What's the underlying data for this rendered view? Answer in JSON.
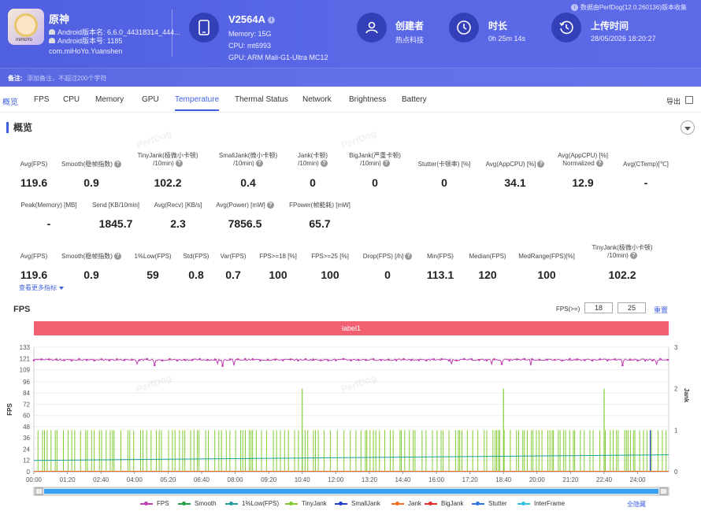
{
  "app": {
    "name": "原神",
    "android_version": "Android版本名: 6.6.0_44318314_444...",
    "android_code": "Android版本号: 1185",
    "package": "com.miHoYo.Yuanshen",
    "icon_tag": "miHoYo"
  },
  "device": {
    "name": "V2564A",
    "memory": "Memory: 15G",
    "cpu": "CPU: mt6993",
    "gpu": "GPU: ARM Mali-G1-Ultra MC12"
  },
  "meta": {
    "creator_label": "创建者",
    "creator_value": "热点科技",
    "duration_label": "时长",
    "duration_value": "0h 25m 14s",
    "upload_label": "上传时间",
    "upload_value": "28/05/2026 18:20:27"
  },
  "collect_note": "数据由PerfDog(12.0.260136)版本收集",
  "remark": {
    "label": "备注:",
    "placeholder": "添加备注，不超过200个字符"
  },
  "tabs": [
    "概览",
    "FPS",
    "CPU",
    "Memory",
    "GPU",
    "Temperature",
    "Thermal Status",
    "Network",
    "Brightness",
    "Battery"
  ],
  "export_label": "导出",
  "overview_title": "概览",
  "row1": [
    {
      "label": "Avg(FPS)",
      "value": "119.6"
    },
    {
      "label": "Smooth(稳帧指数)",
      "value": "0.9"
    },
    {
      "label": "TinyJank(极微小卡顿)",
      "label2": "/10min)",
      "value": "102.2"
    },
    {
      "label": "SmallJank(微小卡顿)",
      "label2": "/10min)",
      "value": "0.4"
    },
    {
      "label": "Jank(卡顿)",
      "label2": "/10min)",
      "value": "0"
    },
    {
      "label": "BigJank(严重卡顿)",
      "label2": "/10min)",
      "value": "0"
    },
    {
      "label": "Stutter(卡顿率) [%]",
      "value": "0"
    },
    {
      "label": "Avg(AppCPU) [%]",
      "value": "34.1"
    },
    {
      "label": "Avg(AppCPU) [%]",
      "label2": "Normalized",
      "value": "12.9"
    },
    {
      "label": "Avg(CTemp)[℃]",
      "value": "-"
    }
  ],
  "row2": [
    {
      "label": "Peak(Memory) [MB]",
      "value": "-"
    },
    {
      "label": "Send [KB/10min]",
      "value": "1845.7"
    },
    {
      "label": "Avg(Recv) [KB/s]",
      "value": "2.3"
    },
    {
      "label": "Avg(Power) [mW]",
      "value": "7856.5"
    },
    {
      "label": "FPower(帧能耗) [mW]",
      "value": "65.7"
    }
  ],
  "row3": [
    {
      "label": "Avg(FPS)",
      "value": "119.6"
    },
    {
      "label": "Smooth(稳帧指数)",
      "value": "0.9"
    },
    {
      "label": "1%Low(FPS)",
      "value": "59"
    },
    {
      "label": "Std(FPS)",
      "value": "0.8"
    },
    {
      "label": "Var(FPS)",
      "value": "0.7"
    },
    {
      "label": "FPS>=18 [%]",
      "value": "100"
    },
    {
      "label": "FPS>=25 [%]",
      "value": "100"
    },
    {
      "label": "Drop(FPS) [/h]",
      "value": "0"
    },
    {
      "label": "Min(FPS)",
      "value": "113.1"
    },
    {
      "label": "Median(FPS)",
      "value": "120"
    },
    {
      "label": "MedRange(FPS)[%]",
      "value": "100"
    },
    {
      "label": "TinyJank(极微小卡顿)",
      "label2": "/10min)",
      "value": "102.2"
    }
  ],
  "more_label": "查看更多指标",
  "fps_section": {
    "title": "FPS",
    "threshold_label": "FPS(>=)",
    "threshold_1": "18",
    "threshold_2": "25",
    "reset_label": "重置",
    "label_bar": "label1",
    "hide_all": "全隐藏",
    "watermark": "PerfDog"
  },
  "chart_data": {
    "type": "line",
    "title": "FPS",
    "ylabel": "FPS",
    "y2label": "Jank",
    "ylim": [
      0,
      133
    ],
    "y_ticks": [
      0,
      12,
      24,
      36,
      48,
      60,
      72,
      84,
      96,
      109,
      121,
      133
    ],
    "y2lim": [
      0,
      3
    ],
    "y2_ticks": [
      0,
      1,
      2,
      3
    ],
    "x_ticks": [
      "00:00",
      "01:20",
      "02:40",
      "04:00",
      "05:20",
      "06:40",
      "08:00",
      "09:20",
      "10:40",
      "12:00",
      "13:20",
      "14:40",
      "16:00",
      "17:20",
      "18:40",
      "20:00",
      "21:20",
      "22:40",
      "24:00"
    ],
    "duration_seconds": 1514,
    "series": [
      {
        "name": "FPS",
        "color": "#c040b0",
        "approx_value": 119.6,
        "min": 113.1,
        "max": 121
      },
      {
        "name": "Smooth",
        "color": "#20a040"
      },
      {
        "name": "1%Low(FPS)",
        "color": "#20a0a0",
        "start": 12,
        "end": 18
      },
      {
        "name": "TinyJank",
        "color": "#80cc30",
        "typical": 1,
        "peaks": [
          {
            "t": "10:40",
            "v": 2
          },
          {
            "t": "18:40",
            "v": 2
          },
          {
            "t": "22:40",
            "v": 2
          }
        ]
      },
      {
        "name": "SmallJank",
        "color": "#2040d0",
        "peaks": [
          {
            "t": "24:30",
            "v": 1
          }
        ]
      },
      {
        "name": "Jank",
        "color": "#f07020"
      },
      {
        "name": "BigJank",
        "color": "#e03030"
      },
      {
        "name": "Stutter",
        "color": "#3070e0"
      },
      {
        "name": "InterFrame",
        "color": "#30c0e0"
      }
    ]
  }
}
